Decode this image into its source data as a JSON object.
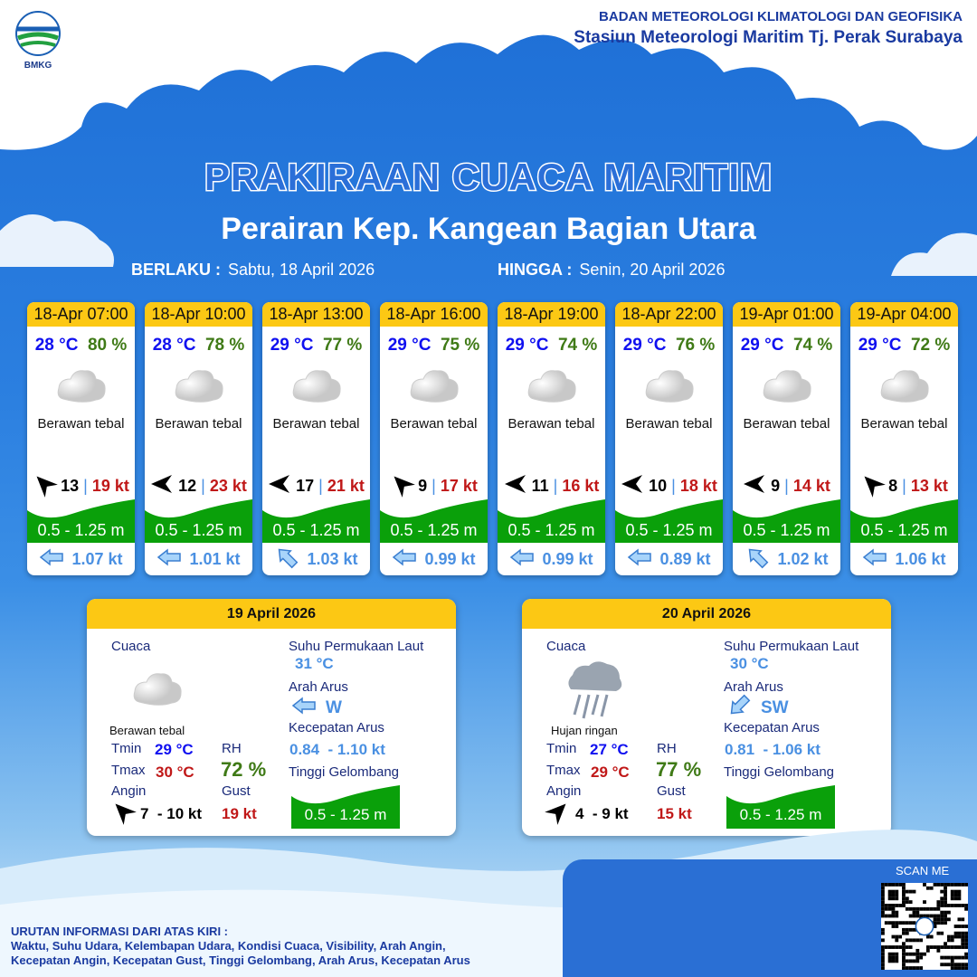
{
  "header": {
    "logo_text": "BMKG",
    "agency": "BADAN METEOROLOGI KLIMATOLOGI DAN GEOFISIKA",
    "station": "Stasiun Meteorologi Maritim Tj. Perak Surabaya"
  },
  "title": "PRAKIRAAN CUACA MARITIM",
  "subtitle": "Perairan Kep. Kangean Bagian Utara",
  "validity": {
    "from_label": "BERLAKU :",
    "from": "Sabtu, 18 April 2026",
    "to_label": "HINGGA :",
    "to": "Senin, 20 April 2026"
  },
  "colors": {
    "header_yellow": "#fcc814",
    "wave_green": "#0aa00a",
    "temp_blue": "#1010f0",
    "rh_green": "#3f7a16",
    "gust_red": "#c01818",
    "current_blue": "#4a90e2"
  },
  "forecasts": [
    {
      "time": "18-Apr 07:00",
      "temp": "28 °C",
      "rh": "80 %",
      "icon": "cloud-icon",
      "weather": "Berawan tebal",
      "wind_icon": "arrow-up-left",
      "wind": "13",
      "gust": "19 kt",
      "wave": "0.5 - 1.25 m",
      "current_icon": "arrow-left",
      "current": "1.07 kt"
    },
    {
      "time": "18-Apr 10:00",
      "temp": "28 °C",
      "rh": "78 %",
      "icon": "cloud-icon",
      "weather": "Berawan tebal",
      "wind_icon": "arrow-left",
      "wind": "12",
      "gust": "23 kt",
      "wave": "0.5 - 1.25 m",
      "current_icon": "arrow-left",
      "current": "1.01 kt"
    },
    {
      "time": "18-Apr 13:00",
      "temp": "29 °C",
      "rh": "77 %",
      "icon": "cloud-icon",
      "weather": "Berawan tebal",
      "wind_icon": "arrow-left",
      "wind": "17",
      "gust": "21 kt",
      "wave": "0.5 - 1.25 m",
      "current_icon": "arrow-up-left",
      "current": "1.03 kt"
    },
    {
      "time": "18-Apr 16:00",
      "temp": "29 °C",
      "rh": "75 %",
      "icon": "cloud-icon",
      "weather": "Berawan tebal",
      "wind_icon": "arrow-up-left",
      "wind": "9",
      "gust": "17 kt",
      "wave": "0.5 - 1.25 m",
      "current_icon": "arrow-left",
      "current": "0.99 kt"
    },
    {
      "time": "18-Apr 19:00",
      "temp": "29 °C",
      "rh": "74 %",
      "icon": "cloud-icon",
      "weather": "Berawan tebal",
      "wind_icon": "arrow-left",
      "wind": "11",
      "gust": "16 kt",
      "wave": "0.5 - 1.25 m",
      "current_icon": "arrow-left",
      "current": "0.99 kt"
    },
    {
      "time": "18-Apr 22:00",
      "temp": "29 °C",
      "rh": "76 %",
      "icon": "cloud-icon",
      "weather": "Berawan tebal",
      "wind_icon": "arrow-left",
      "wind": "10",
      "gust": "18 kt",
      "wave": "0.5 - 1.25 m",
      "current_icon": "arrow-left",
      "current": "0.89 kt"
    },
    {
      "time": "19-Apr 01:00",
      "temp": "29 °C",
      "rh": "74 %",
      "icon": "cloud-icon",
      "weather": "Berawan tebal",
      "wind_icon": "arrow-left",
      "wind": "9",
      "gust": "14 kt",
      "wave": "0.5 - 1.25 m",
      "current_icon": "arrow-up-left",
      "current": "1.02 kt"
    },
    {
      "time": "19-Apr 04:00",
      "temp": "29 °C",
      "rh": "72 %",
      "icon": "cloud-icon",
      "weather": "Berawan tebal",
      "wind_icon": "arrow-up-left",
      "wind": "8",
      "gust": "13 kt",
      "wave": "0.5 - 1.25 m",
      "current_icon": "arrow-left",
      "current": "1.06 kt"
    }
  ],
  "labels": {
    "cuaca": "Cuaca",
    "sst": "Suhu Permukaan Laut",
    "arah_arus": "Arah Arus",
    "kec_arus": "Kecepatan Arus",
    "tinggi": "Tinggi Gelombang",
    "tmin": "Tmin",
    "tmax": "Tmax",
    "rh": "RH",
    "angin": "Angin",
    "gust": "Gust"
  },
  "days": [
    {
      "date": "19 April 2026",
      "icon": "cloud-icon",
      "weather": "Berawan tebal",
      "tmin": "29 °C",
      "tmax": "30 °C",
      "rh": "72 %",
      "wind_icon": "arrow-up-left",
      "wind": "7  - 10 kt",
      "gust": "19 kt",
      "sst": "31 °C",
      "current_icon": "arrow-left",
      "current_dir": "W",
      "current_min": "0.84",
      "current_max": "- 1.10 kt",
      "wave": "0.5 - 1.25 m"
    },
    {
      "date": "20 April 2026",
      "icon": "rain-cloud-icon",
      "weather": "Hujan ringan",
      "tmin": "27 °C",
      "tmax": "29 °C",
      "rh": "77 %",
      "wind_icon": "arrow-up-right",
      "wind": "4  - 9 kt",
      "gust": "15 kt",
      "sst": "30 °C",
      "current_icon": "arrow-down-left",
      "current_dir": "SW",
      "current_min": "0.81",
      "current_max": "- 1.06 kt",
      "wave": "0.5 - 1.25 m"
    }
  ],
  "footer": {
    "legend_title": "URUTAN INFORMASI DARI ATAS KIRI :",
    "legend_line1": "Waktu, Suhu Udara, Kelembapan Udara, Kondisi Cuaca, Visibility, Arah Angin,",
    "legend_line2": "Kecepatan Angin, Kecepatan Gust, Tinggi Gelombang, Arah Arus, Kecepatan Arus",
    "scan": "SCAN ME"
  }
}
